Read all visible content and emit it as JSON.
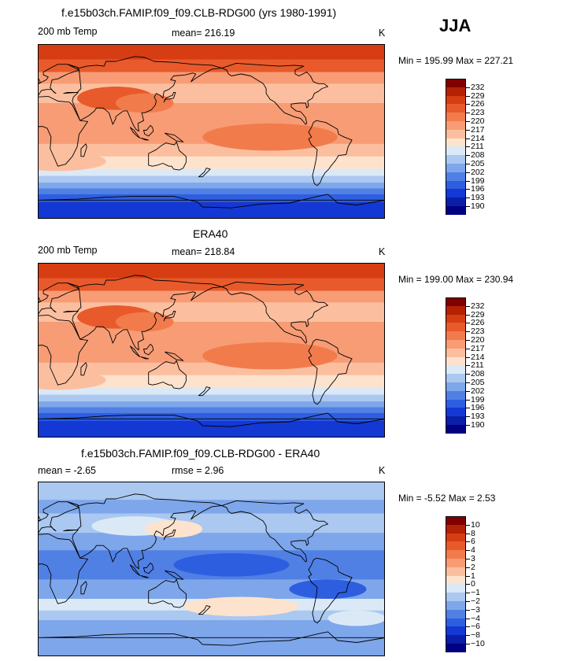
{
  "season": "JJA",
  "panels": [
    {
      "title": "f.e15b03ch.FAMIP.f09_f09.CLB-RDG00 (yrs 1980-1991)",
      "variable": "200 mb Temp",
      "stat": "mean= 216.19",
      "units": "K",
      "minmax": "Min = 195.99 Max = 227.21",
      "palette": "abs",
      "colorbar": {
        "labels": [
          "232",
          "229",
          "226",
          "223",
          "220",
          "217",
          "214",
          "211",
          "208",
          "205",
          "202",
          "199",
          "196",
          "193",
          "190"
        ],
        "colors": [
          "#800000",
          "#b22203",
          "#d63d12",
          "#e85a2b",
          "#f27b4c",
          "#f79c75",
          "#fbbf9f",
          "#fde3cd",
          "#dbe9f7",
          "#aac8f0",
          "#7ea6ea",
          "#5180e4",
          "#2e5ee0",
          "#1438d4",
          "#0a1ea8",
          "#000080"
        ]
      }
    },
    {
      "title": "ERA40",
      "variable": "200 mb Temp",
      "stat": "mean= 218.84",
      "units": "K",
      "minmax": "Min = 199.00 Max = 230.94",
      "palette": "abs",
      "colorbar": {
        "labels": [
          "232",
          "229",
          "226",
          "223",
          "220",
          "217",
          "214",
          "211",
          "208",
          "205",
          "202",
          "199",
          "196",
          "193",
          "190"
        ],
        "colors": [
          "#800000",
          "#b22203",
          "#d63d12",
          "#e85a2b",
          "#f27b4c",
          "#f79c75",
          "#fbbf9f",
          "#fde3cd",
          "#dbe9f7",
          "#aac8f0",
          "#7ea6ea",
          "#5180e4",
          "#2e5ee0",
          "#1438d4",
          "#0a1ea8",
          "#000080"
        ]
      }
    },
    {
      "title": "f.e15b03ch.FAMIP.f09_f09.CLB-RDG00 - ERA40",
      "variable": "mean =   -2.65",
      "stat": "rmse =    2.96",
      "units": "K",
      "minmax": "Min =  -5.52 Max =   2.53",
      "palette": "diff",
      "colorbar": {
        "labels": [
          "10",
          "8",
          "6",
          "4",
          "3",
          "2",
          "1",
          "0",
          "−1",
          "−2",
          "−3",
          "−4",
          "−6",
          "−8",
          "−10"
        ],
        "colors": [
          "#800000",
          "#b22203",
          "#d63d12",
          "#e85a2b",
          "#f27b4c",
          "#f79c75",
          "#fbbf9f",
          "#fde3cd",
          "#dbe9f7",
          "#aac8f0",
          "#7ea6ea",
          "#5180e4",
          "#2e5ee0",
          "#1438d4",
          "#0a1ea8",
          "#000080"
        ]
      }
    }
  ]
}
